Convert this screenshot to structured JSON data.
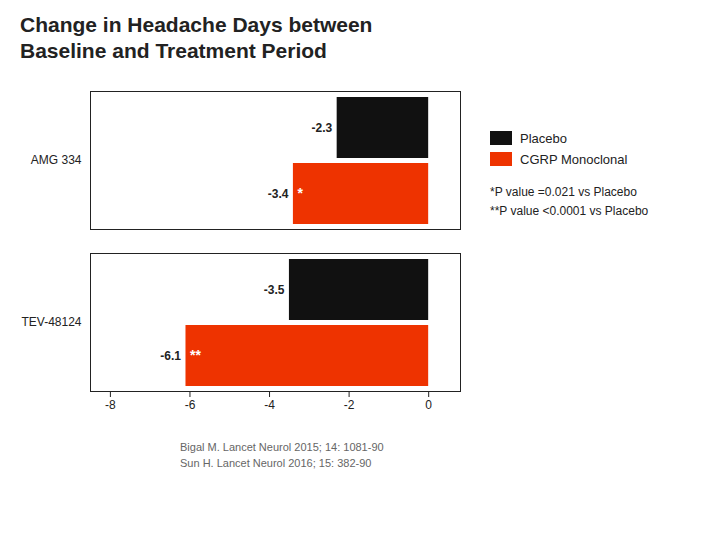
{
  "chart_data": {
    "type": "bar",
    "orientation": "horizontal",
    "title": [
      "Change in Headache Days between",
      "Baseline and Treatment Period"
    ],
    "categories": [
      "AMG 334",
      "TEV-48124"
    ],
    "series": [
      {
        "name": "Placebo",
        "color": "#111111",
        "values": [
          -2.3,
          -3.5
        ]
      },
      {
        "name": "CGRP Monoclonal",
        "color": "#EE3300",
        "values": [
          -3.4,
          -6.1
        ],
        "annotations": [
          "*",
          "**"
        ]
      }
    ],
    "xlim": [
      -8.5,
      0.8
    ],
    "xticks": [
      -8,
      -6,
      -4,
      -2,
      0
    ],
    "data_labels": true,
    "legend": "right",
    "grid": false,
    "annotations": [
      "*P value =0.021 vs Placebo",
      "**P value <0.0001 vs Placebo"
    ],
    "caption": [
      "Bigal M. Lancet Neurol 2015; 14: 1081-90",
      "Sun H. Lancet Neurol 2016; 15: 382-90"
    ]
  }
}
